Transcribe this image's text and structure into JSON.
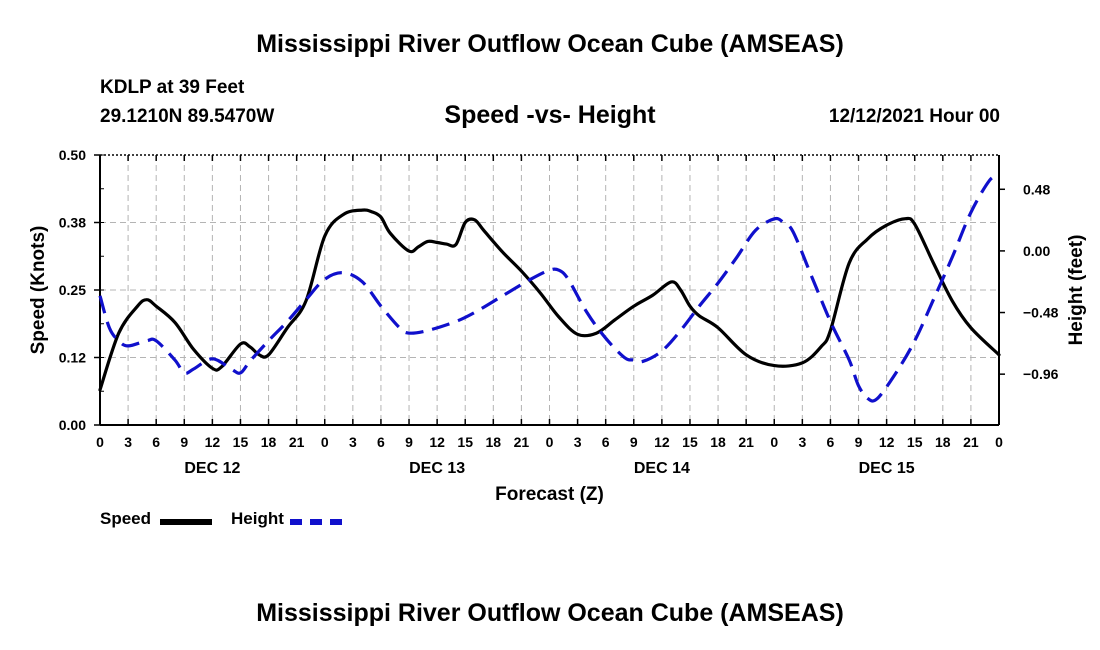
{
  "header": {
    "title": "Mississippi River Outflow Ocean Cube (AMSEAS)",
    "station": "KDLP at 39 Feet",
    "coords": "29.1210N  89.5470W",
    "subtitle": "Speed -vs- Height",
    "datetime": "12/12/2021 Hour 00"
  },
  "footer": {
    "title": "Mississippi River Outflow Ocean Cube (AMSEAS)"
  },
  "legend": {
    "speed_label": "Speed",
    "height_label": "Height"
  },
  "colors": {
    "speed": "#000000",
    "height": "#1010cc",
    "grid": "#b4b4b4"
  },
  "chart_data": {
    "type": "line",
    "title": "Speed -vs- Height",
    "xlabel": "Forecast (Z)",
    "ylabel_left": "Speed (Knots)",
    "ylabel_right": "Height (feet)",
    "x_range_hours": [
      0,
      96
    ],
    "x_ticks": [
      {
        "h": 0,
        "label": "0"
      },
      {
        "h": 3,
        "label": "3"
      },
      {
        "h": 6,
        "label": "6"
      },
      {
        "h": 9,
        "label": "9"
      },
      {
        "h": 12,
        "label": "12"
      },
      {
        "h": 15,
        "label": "15"
      },
      {
        "h": 18,
        "label": "18"
      },
      {
        "h": 21,
        "label": "21"
      },
      {
        "h": 24,
        "label": "0"
      },
      {
        "h": 27,
        "label": "3"
      },
      {
        "h": 30,
        "label": "6"
      },
      {
        "h": 33,
        "label": "9"
      },
      {
        "h": 36,
        "label": "12"
      },
      {
        "h": 39,
        "label": "15"
      },
      {
        "h": 42,
        "label": "18"
      },
      {
        "h": 45,
        "label": "21"
      },
      {
        "h": 48,
        "label": "0"
      },
      {
        "h": 51,
        "label": "3"
      },
      {
        "h": 54,
        "label": "6"
      },
      {
        "h": 57,
        "label": "9"
      },
      {
        "h": 60,
        "label": "12"
      },
      {
        "h": 63,
        "label": "15"
      },
      {
        "h": 66,
        "label": "18"
      },
      {
        "h": 69,
        "label": "21"
      },
      {
        "h": 72,
        "label": "0"
      },
      {
        "h": 75,
        "label": "3"
      },
      {
        "h": 78,
        "label": "6"
      },
      {
        "h": 81,
        "label": "9"
      },
      {
        "h": 84,
        "label": "12"
      },
      {
        "h": 87,
        "label": "15"
      },
      {
        "h": 90,
        "label": "18"
      },
      {
        "h": 93,
        "label": "21"
      },
      {
        "h": 96,
        "label": "0"
      }
    ],
    "day_labels": [
      {
        "h": 12,
        "label": "DEC 12"
      },
      {
        "h": 36,
        "label": "DEC 13"
      },
      {
        "h": 60,
        "label": "DEC 14"
      },
      {
        "h": 84,
        "label": "DEC 15"
      }
    ],
    "speed_axis": {
      "range": [
        0.0,
        0.5
      ],
      "ticks": [
        {
          "v": 0.0,
          "label": "0.00"
        },
        {
          "v": 0.125,
          "label": "0.12"
        },
        {
          "v": 0.25,
          "label": "0.25"
        },
        {
          "v": 0.375,
          "label": "0.38"
        },
        {
          "v": 0.5,
          "label": "0.50"
        }
      ]
    },
    "height_axis": {
      "range": [
        -1.356,
        0.747
      ],
      "ticks": [
        {
          "v": 0.48,
          "label": "0.48"
        },
        {
          "v": 0.0,
          "label": "0.00"
        },
        {
          "v": -0.48,
          "label": "−0.48"
        },
        {
          "v": -0.96,
          "label": "−0.96"
        }
      ]
    },
    "series": [
      {
        "name": "Speed",
        "axis": "left",
        "style": "solid",
        "x": [
          0,
          2,
          4,
          5,
          6,
          8,
          10,
          12,
          13,
          15,
          16,
          17,
          18,
          20,
          22,
          24,
          26,
          28,
          29,
          30,
          31,
          33,
          34,
          35,
          36,
          37,
          38,
          39,
          40,
          41,
          43,
          45,
          47,
          49,
          51,
          53,
          55,
          57,
          59,
          61,
          62,
          63,
          64,
          66,
          69,
          72,
          75,
          77,
          78,
          80,
          82,
          84,
          86,
          87,
          89,
          91,
          93,
          96
        ],
        "values": [
          0.065,
          0.17,
          0.22,
          0.232,
          0.22,
          0.19,
          0.14,
          0.105,
          0.108,
          0.15,
          0.145,
          0.13,
          0.13,
          0.18,
          0.23,
          0.35,
          0.39,
          0.398,
          0.395,
          0.385,
          0.355,
          0.322,
          0.33,
          0.34,
          0.338,
          0.335,
          0.334,
          0.375,
          0.38,
          0.36,
          0.32,
          0.285,
          0.245,
          0.2,
          0.168,
          0.17,
          0.195,
          0.22,
          0.24,
          0.265,
          0.25,
          0.22,
          0.202,
          0.18,
          0.13,
          0.11,
          0.115,
          0.145,
          0.175,
          0.3,
          0.345,
          0.37,
          0.382,
          0.372,
          0.3,
          0.23,
          0.18,
          0.13
        ]
      },
      {
        "name": "Height",
        "axis": "right",
        "style": "dashed",
        "x": [
          0,
          1,
          2,
          3,
          5,
          6,
          8,
          9,
          10,
          12,
          14,
          15,
          16,
          18,
          20,
          22,
          24,
          26,
          28,
          30,
          32,
          33,
          35,
          38,
          40,
          43,
          46,
          48,
          49,
          50,
          52,
          54,
          56,
          57,
          58,
          60,
          62,
          64,
          66,
          68,
          70,
          72,
          73,
          74,
          76,
          78,
          80,
          81,
          82,
          83,
          85,
          87,
          89,
          91,
          93,
          95,
          96
        ],
        "values": [
          -0.35,
          -0.6,
          -0.7,
          -0.74,
          -0.7,
          -0.7,
          -0.85,
          -0.95,
          -0.92,
          -0.84,
          -0.92,
          -0.95,
          -0.86,
          -0.7,
          -0.55,
          -0.38,
          -0.22,
          -0.17,
          -0.24,
          -0.43,
          -0.6,
          -0.64,
          -0.62,
          -0.55,
          -0.48,
          -0.35,
          -0.22,
          -0.15,
          -0.15,
          -0.22,
          -0.48,
          -0.68,
          -0.83,
          -0.85,
          -0.86,
          -0.78,
          -0.62,
          -0.43,
          -0.25,
          -0.05,
          0.16,
          0.25,
          0.22,
          0.15,
          -0.2,
          -0.55,
          -0.85,
          -1.05,
          -1.15,
          -1.15,
          -0.95,
          -0.7,
          -0.38,
          -0.05,
          0.3,
          0.55,
          0.58
        ]
      }
    ]
  }
}
